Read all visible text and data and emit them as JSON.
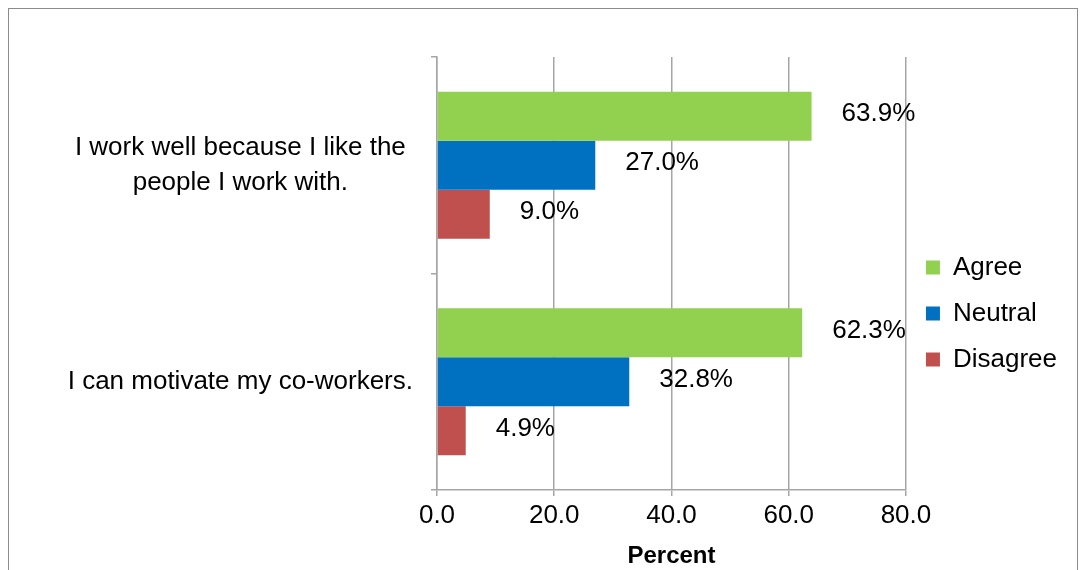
{
  "chart_data": {
    "type": "bar",
    "orientation": "horizontal",
    "categories": [
      "I work well because I like the people I work with.",
      "I can motivate my co-workers."
    ],
    "series": [
      {
        "name": "Agree",
        "color": "#92d050",
        "values": [
          63.9,
          62.3
        ],
        "value_labels": [
          "63.9%",
          "62.3%"
        ]
      },
      {
        "name": "Neutral",
        "color": "#0070c0",
        "values": [
          27.0,
          32.8
        ],
        "value_labels": [
          "27.0%",
          "32.8%"
        ]
      },
      {
        "name": "Disagree",
        "color": "#c0504d",
        "values": [
          9.0,
          4.9
        ],
        "value_labels": [
          "9.0%",
          "4.9%"
        ]
      }
    ],
    "xlim": [
      0,
      80
    ],
    "xticks": [
      {
        "value": 0,
        "label": "0.0"
      },
      {
        "value": 20,
        "label": "20.0"
      },
      {
        "value": 40,
        "label": "40.0"
      },
      {
        "value": 60,
        "label": "60.0"
      },
      {
        "value": 80,
        "label": "80.0"
      }
    ],
    "xlabel": "Percent",
    "grid": "x",
    "legend": "right"
  }
}
